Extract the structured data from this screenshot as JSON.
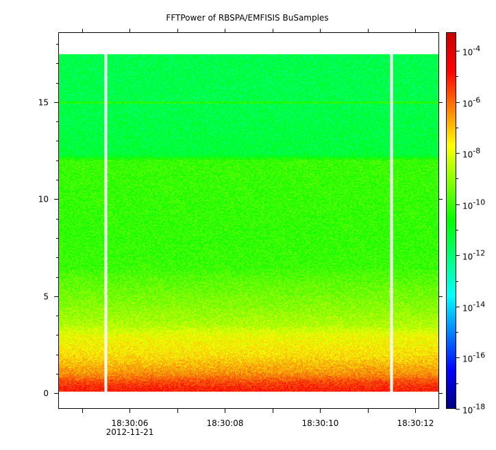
{
  "chart_data": {
    "type": "heatmap",
    "title": "FFTPower of RBSPA/EMFISIS  BuSamples",
    "xlabel": "",
    "ylabel": "",
    "x_ticks": [
      {
        "value": "18:30:06",
        "sub": "2012-11-21"
      },
      {
        "value": "18:30:08",
        "sub": ""
      },
      {
        "value": "18:30:10",
        "sub": ""
      },
      {
        "value": "18:30:12",
        "sub": ""
      }
    ],
    "x_range_seconds": [
      4.5,
      12.5
    ],
    "y_ticks": [
      0,
      5,
      10,
      15
    ],
    "ylim": [
      -0.8,
      18.6
    ],
    "freq_range": [
      0.1,
      17.5
    ],
    "data_gaps_seconds": [
      5.5,
      11.5
    ],
    "z_scale": "log",
    "z_range_exponent": [
      -18,
      -3.3
    ],
    "colorbar_ticks": [
      {
        "base": "10",
        "exp": "-4",
        "power": -4
      },
      {
        "base": "10",
        "exp": "-6",
        "power": -6
      },
      {
        "base": "10",
        "exp": "-8",
        "power": -8
      },
      {
        "base": "10",
        "exp": "-10",
        "power": -10
      },
      {
        "base": "10",
        "exp": "-12",
        "power": -12
      },
      {
        "base": "10",
        "exp": "-14",
        "power": -14
      },
      {
        "base": "10",
        "exp": "-16",
        "power": -16
      },
      {
        "base": "10",
        "exp": "-18",
        "power": -18
      }
    ],
    "spectrum_profile": [
      {
        "freq": 0.1,
        "log_power": -5.0
      },
      {
        "freq": 0.3,
        "log_power": -5.2
      },
      {
        "freq": 0.6,
        "log_power": -5.6
      },
      {
        "freq": 1.0,
        "log_power": -6.4
      },
      {
        "freq": 2.0,
        "log_power": -7.4
      },
      {
        "freq": 3.0,
        "log_power": -7.9
      },
      {
        "freq": 3.5,
        "log_power": -8.6
      },
      {
        "freq": 4.5,
        "log_power": -9.1
      },
      {
        "freq": 6.0,
        "log_power": -9.7
      },
      {
        "freq": 6.5,
        "log_power": -10.0
      },
      {
        "freq": 8.0,
        "log_power": -10.1
      },
      {
        "freq": 12.0,
        "log_power": -10.0
      },
      {
        "freq": 12.3,
        "log_power": -11.3
      },
      {
        "freq": 15.0,
        "log_power": -11.5
      },
      {
        "freq": 17.5,
        "log_power": -11.5
      }
    ],
    "line_feature": {
      "freq": 15.0,
      "log_power": -10.3
    },
    "colormap": [
      "#00007f",
      "#0000ff",
      "#0080ff",
      "#00ffff",
      "#00ff80",
      "#00ff00",
      "#80ff00",
      "#ffff00",
      "#ff8000",
      "#ff0000",
      "#cc0000"
    ]
  }
}
